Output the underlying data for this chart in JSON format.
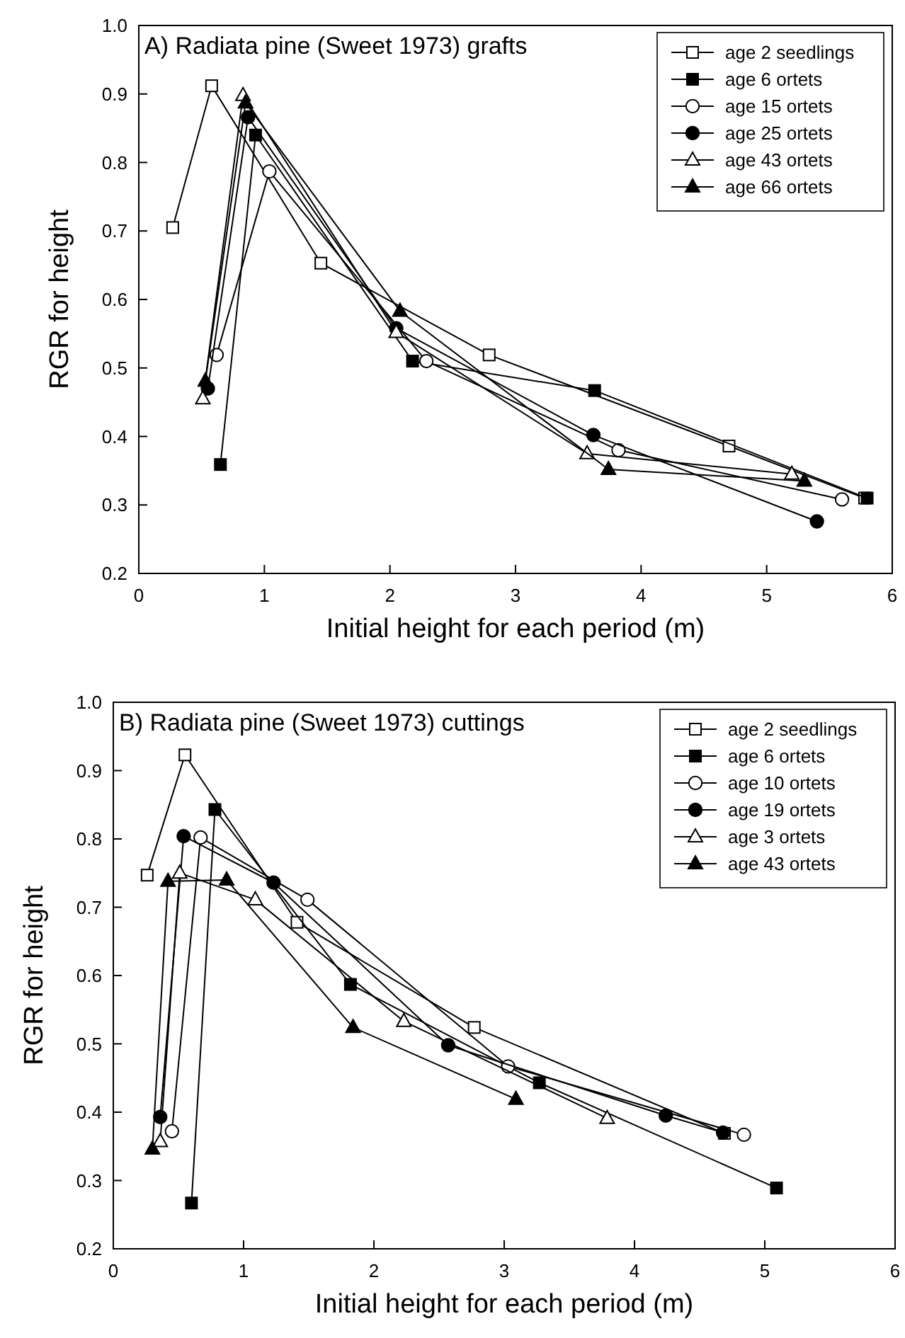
{
  "chart_data": [
    {
      "type": "line",
      "title": "A) Radiata pine (Sweet 1973) grafts",
      "xlabel": "Initial height for each period (m)",
      "ylabel": "RGR for height",
      "xlim": [
        0,
        6
      ],
      "ylim": [
        0.2,
        1.0
      ],
      "xticks": [
        0,
        1,
        2,
        3,
        4,
        5,
        6
      ],
      "yticks": [
        {
          "value": 0.2,
          "label": "0.2"
        },
        {
          "value": 0.3,
          "label": "0.3"
        },
        {
          "value": 0.4,
          "label": "0.4"
        },
        {
          "value": 0.5,
          "label": "0.5"
        },
        {
          "value": 0.6,
          "label": "0.6"
        },
        {
          "value": 0.7,
          "label": "0.7"
        },
        {
          "value": 0.8,
          "label": "0.8"
        },
        {
          "value": 0.9,
          "label": "0.9"
        },
        {
          "value": 1.0,
          "label": "1.0"
        }
      ],
      "grid": false,
      "legend": "top right",
      "series": [
        {
          "name": "age 2 seedlings",
          "color": "#000000",
          "marker": "square-open",
          "x": [
            0.27,
            0.58,
            1.45,
            2.79,
            4.7,
            5.78
          ],
          "values": [
            0.705,
            0.912,
            0.653,
            0.519,
            0.386,
            0.31
          ]
        },
        {
          "name": "age 6 ortets",
          "color": "#000000",
          "marker": "square",
          "x": [
            0.65,
            0.93,
            2.18,
            3.63,
            5.8
          ],
          "values": [
            0.359,
            0.84,
            0.51,
            0.467,
            0.31
          ]
        },
        {
          "name": "age 15 ortets",
          "color": "#000000",
          "marker": "circle-open",
          "x": [
            0.62,
            1.04,
            2.29,
            3.82,
            5.6
          ],
          "values": [
            0.519,
            0.787,
            0.51,
            0.38,
            0.308
          ]
        },
        {
          "name": "age 25 ortets",
          "color": "#000000",
          "marker": "circle",
          "x": [
            0.55,
            0.87,
            2.05,
            3.62,
            5.4
          ],
          "values": [
            0.47,
            0.866,
            0.558,
            0.402,
            0.276
          ]
        },
        {
          "name": "age 43 ortets",
          "color": "#000000",
          "marker": "triangle-open",
          "x": [
            0.51,
            0.83,
            2.05,
            3.57,
            5.2
          ],
          "values": [
            0.455,
            0.898,
            0.552,
            0.375,
            0.345
          ]
        },
        {
          "name": "age 66 ortets",
          "color": "#000000",
          "marker": "triangle",
          "x": [
            0.53,
            0.85,
            2.08,
            3.74,
            5.3
          ],
          "values": [
            0.481,
            0.887,
            0.583,
            0.352,
            0.335
          ]
        }
      ]
    },
    {
      "type": "line",
      "title": "B) Radiata pine (Sweet 1973) cuttings",
      "xlabel": "Initial height for each period (m)",
      "ylabel": "RGR for height",
      "xlim": [
        0,
        6
      ],
      "ylim": [
        0.2,
        1.0
      ],
      "xticks": [
        0,
        1,
        2,
        3,
        4,
        5,
        6
      ],
      "yticks": [
        {
          "value": 0.2,
          "label": "0.2"
        },
        {
          "value": 0.3,
          "label": "0.3"
        },
        {
          "value": 0.4,
          "label": "0.4"
        },
        {
          "value": 0.5,
          "label": "0.5"
        },
        {
          "value": 0.6,
          "label": "0.6"
        },
        {
          "value": 0.7,
          "label": "0.7"
        },
        {
          "value": 0.8,
          "label": "0.8"
        },
        {
          "value": 0.9,
          "label": "0.9"
        },
        {
          "value": 1.0,
          "label": "1.0"
        }
      ],
      "grid": false,
      "legend": "top right",
      "series": [
        {
          "name": "age 2 seedlings",
          "color": "#000000",
          "marker": "square-open",
          "x": [
            0.26,
            0.55,
            1.41,
            2.77,
            4.69
          ],
          "values": [
            0.747,
            0.923,
            0.678,
            0.524,
            0.369
          ]
        },
        {
          "name": "age 6 ortets",
          "color": "#000000",
          "marker": "square",
          "x": [
            0.6,
            0.78,
            1.82,
            3.27,
            5.09
          ],
          "values": [
            0.267,
            0.843,
            0.587,
            0.443,
            0.289
          ]
        },
        {
          "name": "age 10 ortets",
          "color": "#000000",
          "marker": "circle-open",
          "x": [
            0.45,
            0.67,
            1.49,
            3.03,
            4.84
          ],
          "values": [
            0.372,
            0.802,
            0.711,
            0.467,
            0.367
          ]
        },
        {
          "name": "age 19 ortets",
          "color": "#000000",
          "marker": "circle",
          "x": [
            0.36,
            0.54,
            1.23,
            2.57,
            4.24,
            4.68
          ],
          "values": [
            0.393,
            0.804,
            0.736,
            0.498,
            0.395,
            0.37
          ]
        },
        {
          "name": "age 3 ortets",
          "color": "#000000",
          "marker": "triangle-open",
          "x": [
            0.36,
            0.51,
            1.09,
            2.23,
            3.79
          ],
          "values": [
            0.357,
            0.75,
            0.711,
            0.533,
            0.391
          ]
        },
        {
          "name": "age 43 ortets",
          "color": "#000000",
          "marker": "triangle",
          "x": [
            0.3,
            0.42,
            0.87,
            1.84,
            3.09
          ],
          "values": [
            0.346,
            0.738,
            0.74,
            0.524,
            0.419
          ]
        }
      ]
    }
  ]
}
